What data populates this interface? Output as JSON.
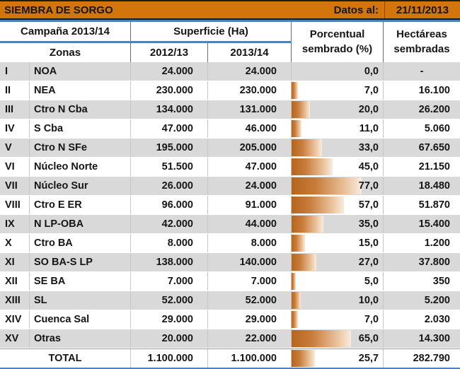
{
  "title": {
    "text": "SIEMBRA DE SORGO",
    "datos_label": "Datos al:",
    "date": "21/11/2013"
  },
  "header": {
    "campana": "Campaña 2013/14",
    "superficie": "Superficie (Ha)",
    "porcentual_line1": "Porcentual",
    "porcentual_line2": "sembrado (%)",
    "hectareas_line1": "Hectáreas",
    "hectareas_line2": "sembradas",
    "zonas": "Zonas",
    "col_2012": "2012/13",
    "col_2013": "2013/14"
  },
  "colors": {
    "header_orange": "#D2760C",
    "accent_blue": "#4F81BD",
    "row_gray": "#D9D9D9",
    "bar_gradient_start": "#B5651D",
    "bar_gradient_end": "#F8ECE0"
  },
  "table": {
    "rows": [
      {
        "num": "I",
        "zone": "NOA",
        "s2012": "24.000",
        "s2013": "24.000",
        "pct": "0,0",
        "pct_value": 0,
        "ha": "-"
      },
      {
        "num": "II",
        "zone": "NEA",
        "s2012": "230.000",
        "s2013": "230.000",
        "pct": "7,0",
        "pct_value": 7,
        "ha": "16.100"
      },
      {
        "num": "III",
        "zone": "Ctro N Cba",
        "s2012": "134.000",
        "s2013": "131.000",
        "pct": "20,0",
        "pct_value": 20,
        "ha": "26.200"
      },
      {
        "num": "IV",
        "zone": "S Cba",
        "s2012": "47.000",
        "s2013": "46.000",
        "pct": "11,0",
        "pct_value": 11,
        "ha": "5.060"
      },
      {
        "num": "V",
        "zone": "Ctro N SFe",
        "s2012": "195.000",
        "s2013": "205.000",
        "pct": "33,0",
        "pct_value": 33,
        "ha": "67.650"
      },
      {
        "num": "VI",
        "zone": "Núcleo Norte",
        "s2012": "51.500",
        "s2013": "47.000",
        "pct": "45,0",
        "pct_value": 45,
        "ha": "21.150"
      },
      {
        "num": "VII",
        "zone": "Núcleo Sur",
        "s2012": "26.000",
        "s2013": "24.000",
        "pct": "77,0",
        "pct_value": 77,
        "ha": "18.480"
      },
      {
        "num": "VIII",
        "zone": "Ctro E ER",
        "s2012": "96.000",
        "s2013": "91.000",
        "pct": "57,0",
        "pct_value": 57,
        "ha": "51.870"
      },
      {
        "num": "IX",
        "zone": "N LP-OBA",
        "s2012": "42.000",
        "s2013": "44.000",
        "pct": "35,0",
        "pct_value": 35,
        "ha": "15.400"
      },
      {
        "num": "X",
        "zone": "Ctro BA",
        "s2012": "8.000",
        "s2013": "8.000",
        "pct": "15,0",
        "pct_value": 15,
        "ha": "1.200"
      },
      {
        "num": "XI",
        "zone": "SO BA-S LP",
        "s2012": "138.000",
        "s2013": "140.000",
        "pct": "27,0",
        "pct_value": 27,
        "ha": "37.800"
      },
      {
        "num": "XII",
        "zone": "SE BA",
        "s2012": "7.000",
        "s2013": "7.000",
        "pct": "5,0",
        "pct_value": 5,
        "ha": "350"
      },
      {
        "num": "XIII",
        "zone": "SL",
        "s2012": "52.000",
        "s2013": "52.000",
        "pct": "10,0",
        "pct_value": 10,
        "ha": "5.200"
      },
      {
        "num": "XIV",
        "zone": "Cuenca Sal",
        "s2012": "29.000",
        "s2013": "29.000",
        "pct": "7,0",
        "pct_value": 7,
        "ha": "2.030"
      },
      {
        "num": "XV",
        "zone": "Otras",
        "s2012": "20.000",
        "s2013": "22.000",
        "pct": "65,0",
        "pct_value": 65,
        "ha": "14.300"
      }
    ],
    "total": {
      "label": "TOTAL",
      "s2012": "1.100.000",
      "s2013": "1.100.000",
      "pct": "25,7",
      "pct_value": 25.7,
      "ha": "282.790"
    }
  }
}
